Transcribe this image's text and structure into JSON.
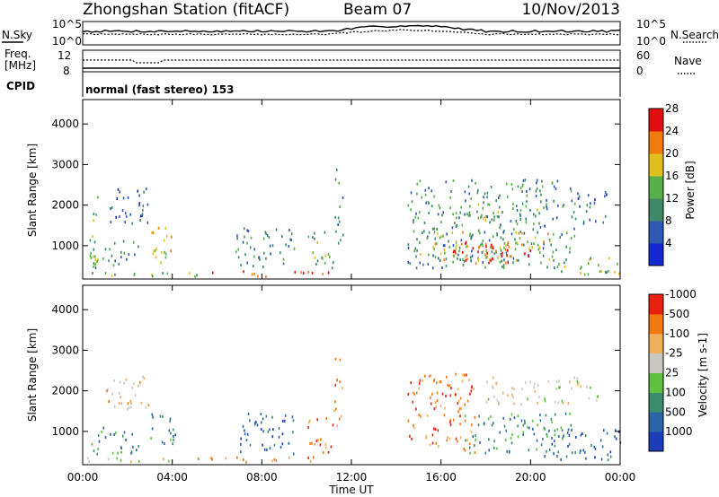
{
  "header": {
    "station": "Zhongshan Station (fitACF)",
    "beam": "Beam 07",
    "date": "10/Nov/2013"
  },
  "noise_panel": {
    "left_label": "N.Sky",
    "right_label": "N.Search",
    "left_ticks": [
      "10^5",
      "10^0"
    ],
    "right_ticks": [
      "10^5",
      "10^0"
    ]
  },
  "freq_panel": {
    "left_label_line1": "Freq.",
    "left_label_line2": "[MHz]",
    "right_label": "Nave",
    "left_ticks": [
      "12",
      "8"
    ],
    "right_ticks": [
      "60",
      "0"
    ]
  },
  "cpid": {
    "label": "CPID",
    "text": "normal (fast stereo) 153"
  },
  "x_axis": {
    "label": "Time UT",
    "ticks": [
      "00:00",
      "04:00",
      "08:00",
      "12:00",
      "16:00",
      "20:00",
      "00:00"
    ]
  },
  "chart_data": [
    {
      "type": "heatmap",
      "ylabel": "Slant Range [km]",
      "y_ticks": [
        1000,
        2000,
        3000,
        4000
      ],
      "ylim": [
        180,
        4600
      ],
      "xlim_hours": [
        0,
        24
      ],
      "colorbar": {
        "label": "Power [dB]",
        "tick_labels": [
          "4",
          "8",
          "12",
          "16",
          "20",
          "24",
          "28"
        ],
        "colors": [
          "#1428d0",
          "#2f58b0",
          "#3f8868",
          "#58b048",
          "#e0c020",
          "#f07c10",
          "#e01010"
        ]
      },
      "observed_blocks": [
        {
          "t0": 0.3,
          "t1": 0.7,
          "r0": 250,
          "r1": 2400,
          "level": 3
        },
        {
          "t0": 0.3,
          "t1": 2.5,
          "r0": 400,
          "r1": 1100,
          "level": 2
        },
        {
          "t0": 1.0,
          "t1": 3.0,
          "r0": 1500,
          "r1": 2400,
          "level": 1
        },
        {
          "t0": 3.0,
          "t1": 4.2,
          "r0": 500,
          "r1": 1400,
          "level": 4
        },
        {
          "t0": 0.0,
          "t1": 5.5,
          "r0": 200,
          "r1": 330,
          "level": 3
        },
        {
          "t0": 5.5,
          "t1": 11.5,
          "r0": 200,
          "r1": 330,
          "level": 6
        },
        {
          "t0": 6.8,
          "t1": 9.5,
          "r0": 400,
          "r1": 1400,
          "level": 2
        },
        {
          "t0": 10.0,
          "t1": 11.2,
          "r0": 400,
          "r1": 1300,
          "level": 3
        },
        {
          "t0": 11.2,
          "t1": 11.6,
          "r0": 1000,
          "r1": 3000,
          "level": 2
        },
        {
          "t0": 14.5,
          "t1": 22.0,
          "r0": 400,
          "r1": 2600,
          "level": 2
        },
        {
          "t0": 15.0,
          "t1": 21.0,
          "r0": 600,
          "r1": 1300,
          "level": 4
        },
        {
          "t0": 16.5,
          "t1": 20.0,
          "r0": 450,
          "r1": 1050,
          "level": 6
        },
        {
          "t0": 17.5,
          "t1": 20.5,
          "r0": 1500,
          "r1": 2000,
          "level": 3
        },
        {
          "t0": 21.0,
          "t1": 24.0,
          "r0": 250,
          "r1": 700,
          "level": 3
        },
        {
          "t0": 22.0,
          "t1": 23.5,
          "r0": 1500,
          "r1": 2300,
          "level": 1
        }
      ]
    },
    {
      "type": "heatmap",
      "ylabel": "Slant Range [km]",
      "y_ticks": [
        1000,
        2000,
        3000,
        4000
      ],
      "ylim": [
        180,
        4600
      ],
      "xlim_hours": [
        0,
        24
      ],
      "colorbar": {
        "label": "Velocity [m s-1]",
        "tick_labels": [
          "1000",
          "500",
          "100",
          "25",
          "-25",
          "-100",
          "-500",
          "-1000"
        ],
        "colors": [
          "#1c3cb8",
          "#2c64a8",
          "#3c8c70",
          "#60c040",
          "#c8c8c0",
          "#f0b060",
          "#f07a10",
          "#e82010"
        ]
      },
      "observed_blocks": [
        {
          "t0": 0.3,
          "t1": 2.5,
          "r0": 400,
          "r1": 1100,
          "level": 2
        },
        {
          "t0": 1.0,
          "t1": 3.0,
          "r0": 1500,
          "r1": 2400,
          "level": 5
        },
        {
          "t0": 3.0,
          "t1": 4.2,
          "r0": 500,
          "r1": 1400,
          "level": 2
        },
        {
          "t0": 0.0,
          "t1": 5.5,
          "r0": 200,
          "r1": 330,
          "level": 4
        },
        {
          "t0": 5.5,
          "t1": 11.5,
          "r0": 200,
          "r1": 330,
          "level": 6
        },
        {
          "t0": 6.8,
          "t1": 9.5,
          "r0": 400,
          "r1": 1400,
          "level": 1
        },
        {
          "t0": 10.0,
          "t1": 11.2,
          "r0": 400,
          "r1": 1300,
          "level": 6
        },
        {
          "t0": 11.2,
          "t1": 11.6,
          "r0": 1000,
          "r1": 3000,
          "level": 6
        },
        {
          "t0": 14.5,
          "t1": 17.5,
          "r0": 400,
          "r1": 2400,
          "level": 6
        },
        {
          "t0": 17.0,
          "t1": 22.0,
          "r0": 400,
          "r1": 1400,
          "level": 2
        },
        {
          "t0": 18.0,
          "t1": 23.0,
          "r0": 1600,
          "r1": 2300,
          "level": 4
        },
        {
          "t0": 20.5,
          "t1": 24.0,
          "r0": 250,
          "r1": 1000,
          "level": 1
        }
      ]
    }
  ]
}
